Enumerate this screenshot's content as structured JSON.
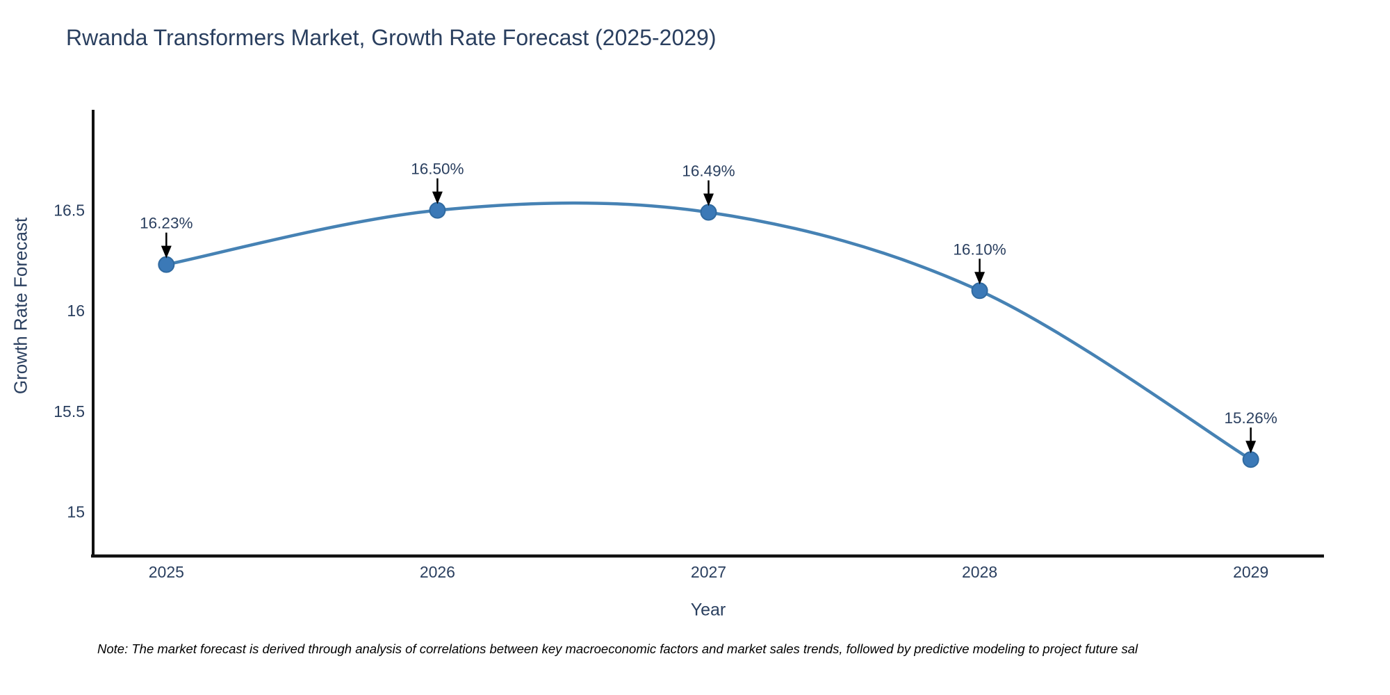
{
  "title": "Rwanda Transformers Market, Growth Rate Forecast (2025-2029)",
  "note": "Note: The market forecast is derived through analysis of correlations between key macroeconomic factors and market sales trends, followed by predictive modeling to project future sal",
  "chart_data": {
    "type": "line",
    "title": "Rwanda Transformers Market, Growth Rate Forecast (2025-2029)",
    "xlabel": "Year",
    "ylabel": "Growth Rate Forecast",
    "x": [
      2025,
      2026,
      2027,
      2028,
      2029
    ],
    "series": [
      {
        "name": "Growth Rate Forecast",
        "values": [
          16.23,
          16.5,
          16.49,
          16.1,
          15.26
        ]
      }
    ],
    "point_labels": [
      "16.23%",
      "16.50%",
      "16.49%",
      "16.10%",
      "15.26%"
    ],
    "x_tick_labels": [
      "2025",
      "2026",
      "2027",
      "2028",
      "2029"
    ],
    "y_tick_labels": [
      "15",
      "15.5",
      "16",
      "16.5"
    ],
    "y_ticks": [
      15,
      15.5,
      16,
      16.5
    ],
    "xlim": [
      2024.73,
      2029.27
    ],
    "ylim": [
      14.78,
      17.0
    ],
    "line_shape": "spline",
    "grid": false,
    "legend": "none",
    "colors": {
      "line": "#4682b4",
      "marker_fill": "#3b79b7",
      "marker_edge": "#306aa0",
      "axis": "#111111",
      "text": "#2a3f5f",
      "annotation_arrow": "#000000",
      "background": "#ffffff"
    }
  }
}
